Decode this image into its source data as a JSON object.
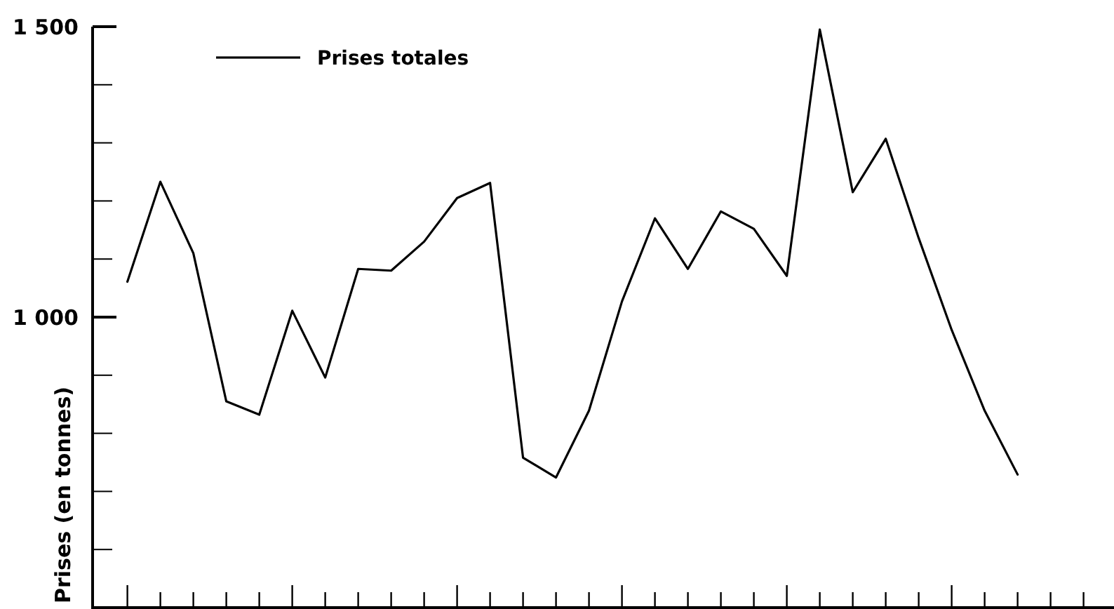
{
  "chart_data": {
    "type": "line",
    "ylabel": "Prises (en tonnes)",
    "categories": [
      null,
      null,
      null,
      null,
      null,
      null,
      null,
      null,
      null,
      null,
      null,
      null,
      null,
      null,
      null,
      null,
      null,
      null,
      null,
      null,
      null,
      null,
      null,
      null,
      null,
      null,
      null,
      null,
      null,
      null
    ],
    "series": [
      {
        "name": "Prises totales",
        "color": "#000000",
        "values": [
          1061,
          1233,
          1110,
          855,
          832,
          1011,
          896,
          1083,
          1080,
          1130,
          1205,
          1231,
          758,
          724,
          839,
          1027,
          1170,
          1083,
          1182,
          1152,
          1071,
          1495,
          1215,
          1307,
          1136,
          978,
          839,
          729,
          null,
          null
        ]
      }
    ],
    "ylim": [
      500,
      1500
    ],
    "yticks": [
      {
        "value": 600,
        "label": null
      },
      {
        "value": 700,
        "label": null
      },
      {
        "value": 800,
        "label": null
      },
      {
        "value": 900,
        "label": null
      },
      {
        "value": 1000,
        "label": "1 000"
      },
      {
        "value": 1100,
        "label": null
      },
      {
        "value": 1200,
        "label": null
      },
      {
        "value": 1300,
        "label": null
      },
      {
        "value": 1400,
        "label": null
      },
      {
        "value": 1500,
        "label": "1 500"
      }
    ],
    "legend": "top left",
    "grid": false,
    "marker": "none",
    "line_style": "solid"
  }
}
